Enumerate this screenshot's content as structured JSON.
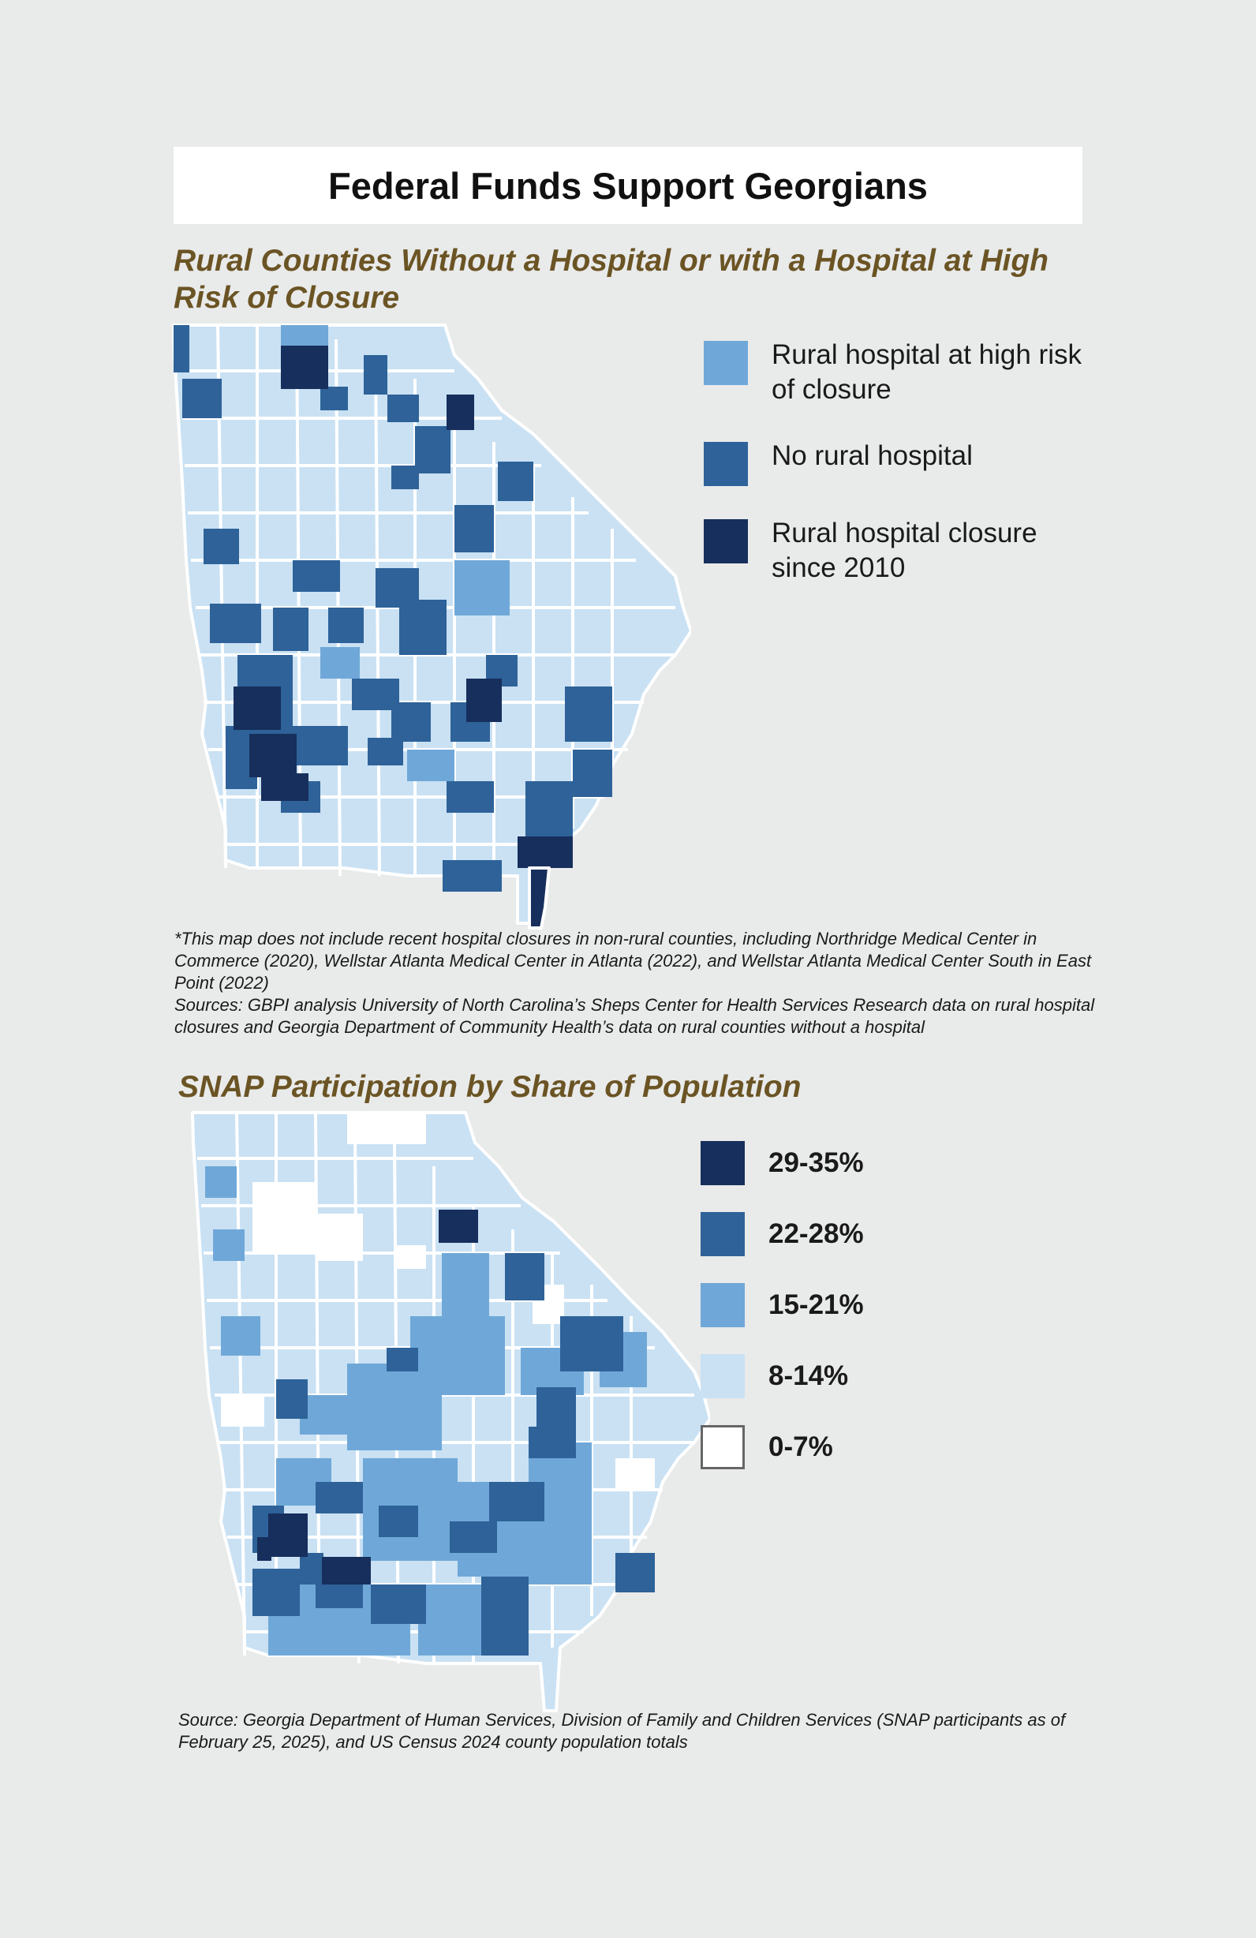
{
  "title": "Federal Funds Support Georgians",
  "hospital_map": {
    "title": "Rural Counties Without a Hospital or with a Hospital at High Risk of Closure",
    "legend": [
      {
        "label": "Rural hospital at high risk of closure",
        "color": "#6fa8d8"
      },
      {
        "label": "No rural hospital",
        "color": "#2e6299"
      },
      {
        "label": "Rural hospital closure since 2010",
        "color": "#172f5c"
      }
    ],
    "note": "*This map does not include recent hospital closures in non-rural counties, including Northridge Medical Center in Commerce (2020), Wellstar Atlanta Medical Center in Atlanta (2022), and Wellstar Atlanta Medical Center South in East Point (2022)",
    "source": "Sources: GBPI analysis University of North Carolina’s Sheps Center for Health Services Research data on rural hospital closures and Georgia Department of Community Health’s data on rural counties without a hospital"
  },
  "snap_map": {
    "title": "SNAP Participation by Share of Population",
    "legend": [
      {
        "label": "29-35%",
        "color": "#172f5c"
      },
      {
        "label": "22-28%",
        "color": "#2e6299"
      },
      {
        "label": "15-21%",
        "color": "#6fa8d8"
      },
      {
        "label": "8-14%",
        "color": "#c9e1f3"
      },
      {
        "label": "0-7%",
        "color": "#ffffff"
      }
    ],
    "source": "Source: Georgia Department of Human Services, Division of Family and Children Services (SNAP participants as of February 25, 2025), and US Census 2024 county population totals"
  },
  "colors": {
    "background": "#e9eaea",
    "base_county": "#c9e1f3",
    "title_text": "#6b5424"
  }
}
